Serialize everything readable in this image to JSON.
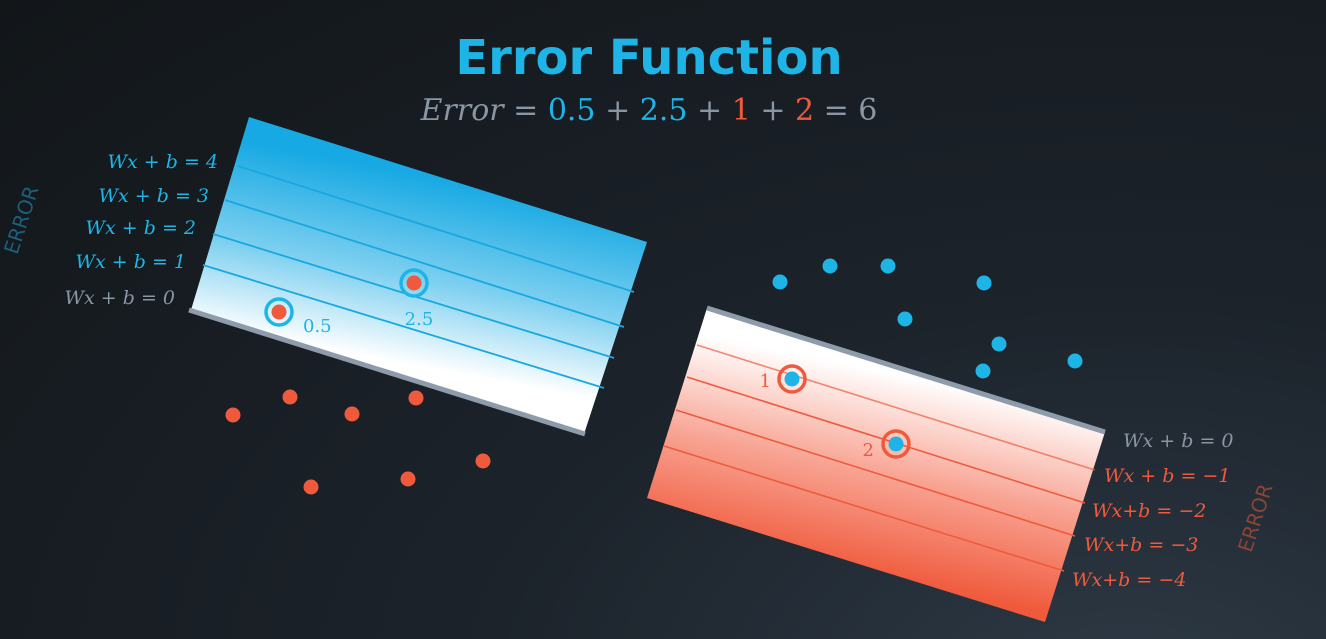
{
  "title": "Error Function",
  "equation": {
    "parts": [
      {
        "text": "Error",
        "italic": true,
        "color": "#8a96a3"
      },
      {
        "text": " = ",
        "italic": false,
        "color": "#8a96a3"
      },
      {
        "text": "0.5",
        "italic": false,
        "color": "#1eb4e6"
      },
      {
        "text": " + ",
        "italic": false,
        "color": "#8a96a3"
      },
      {
        "text": "2.5",
        "italic": false,
        "color": "#1eb4e6"
      },
      {
        "text": " + ",
        "italic": false,
        "color": "#8a96a3"
      },
      {
        "text": "1",
        "italic": false,
        "color": "#f05a3c"
      },
      {
        "text": " + ",
        "italic": false,
        "color": "#8a96a3"
      },
      {
        "text": "2",
        "italic": false,
        "color": "#f05a3c"
      },
      {
        "text": " = 6",
        "italic": false,
        "color": "#8a96a3"
      }
    ]
  },
  "colors": {
    "blue": "#1eb4e6",
    "red": "#f05a3c",
    "gray": "#8a96a3",
    "boundary": "#8d9bab"
  },
  "blue_region": {
    "error_word": "ERROR",
    "level_labels": [
      {
        "text": "Wx + b = 4",
        "level": 4
      },
      {
        "text": "Wx + b = 3",
        "level": 3
      },
      {
        "text": "Wx + b = 2",
        "level": 2
      },
      {
        "text": "Wx + b = 1",
        "level": 1
      },
      {
        "text": "Wx + b = 0",
        "level": 0
      }
    ],
    "misclassified": [
      {
        "label": "0.5",
        "error": 0.5
      },
      {
        "label": "2.5",
        "error": 2.5
      }
    ]
  },
  "red_region": {
    "error_word": "ERROR",
    "level_labels": [
      {
        "text": "Wx + b = 0",
        "level": 0
      },
      {
        "text": "Wx + b = −1",
        "level": -1
      },
      {
        "text": "Wx+b = −2",
        "level": -2
      },
      {
        "text": "Wx+b = −3",
        "level": -3
      },
      {
        "text": "Wx+b = −4",
        "level": -4
      }
    ],
    "misclassified": [
      {
        "label": "1",
        "error": 1
      },
      {
        "label": "2",
        "error": 2
      }
    ]
  },
  "red_points_count": 8,
  "blue_points_count": 9
}
